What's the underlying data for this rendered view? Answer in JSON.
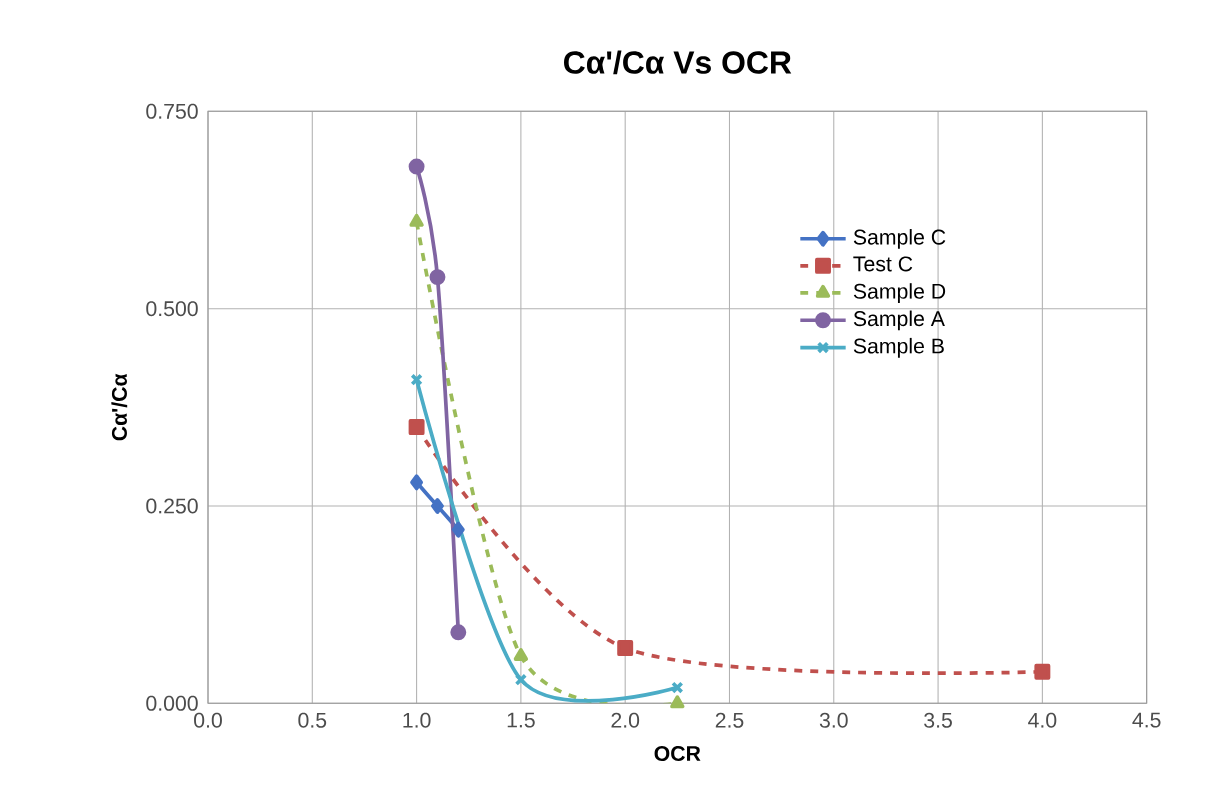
{
  "chart_data": {
    "type": "line",
    "title": "Cα'/Cα Vs OCR",
    "xlabel": "OCR",
    "ylabel": "Cα'/Cα",
    "xlim": [
      0,
      4.5
    ],
    "ylim": [
      0,
      0.75
    ],
    "xticks": [
      {
        "value": 0,
        "label": "0.0"
      },
      {
        "value": 0.5,
        "label": "0.5"
      },
      {
        "value": 1,
        "label": "1.0"
      },
      {
        "value": 1.5,
        "label": "1.5"
      },
      {
        "value": 2,
        "label": "2.0"
      },
      {
        "value": 2.5,
        "label": "2.5"
      },
      {
        "value": 3,
        "label": "3.0"
      },
      {
        "value": 3.5,
        "label": "3.5"
      },
      {
        "value": 4,
        "label": "4.0"
      },
      {
        "value": 4.5,
        "label": "4.5"
      }
    ],
    "yticks": [
      {
        "value": 0,
        "label": "0.000"
      },
      {
        "value": 0.25,
        "label": "0.250"
      },
      {
        "value": 0.5,
        "label": "0.500"
      },
      {
        "value": 0.75,
        "label": "0.750"
      }
    ],
    "grid": true,
    "legend": "right",
    "series": [
      {
        "name": "Sample C",
        "color": "#4472c4",
        "marker": "diamond",
        "line_style": "solid",
        "x": [
          1.0,
          1.1,
          1.2
        ],
        "values": [
          0.28,
          0.25,
          0.22
        ]
      },
      {
        "name": "Test C",
        "color": "#c0504d",
        "marker": "square",
        "line_style": "dashed",
        "x": [
          1.0,
          2.0,
          4.0
        ],
        "values": [
          0.35,
          0.07,
          0.04
        ]
      },
      {
        "name": "Sample D",
        "color": "#9bbb59",
        "marker": "triangle",
        "line_style": "dashed",
        "x": [
          1.0,
          1.5,
          2.25
        ],
        "values": [
          0.61,
          0.06,
          0.0
        ]
      },
      {
        "name": "Sample A",
        "color": "#8064a2",
        "marker": "circle",
        "line_style": "solid",
        "x": [
          1.0,
          1.1,
          1.2
        ],
        "values": [
          0.68,
          0.54,
          0.09
        ]
      },
      {
        "name": "Sample B",
        "color": "#4bacc6",
        "marker": "cross",
        "line_style": "solid",
        "x": [
          1.0,
          1.5,
          2.25
        ],
        "values": [
          0.41,
          0.03,
          0.02
        ]
      }
    ]
  }
}
